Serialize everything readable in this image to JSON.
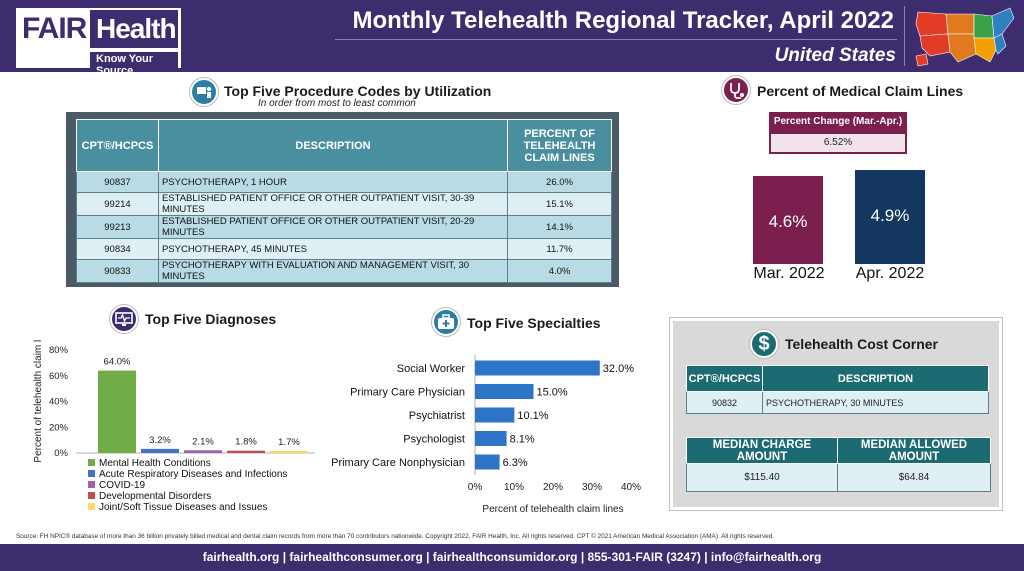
{
  "header": {
    "logo_fair": "FAIR",
    "logo_health": "Health",
    "logo_tagline": "Know Your Source",
    "title": "Monthly Telehealth Regional Tracker, April 2022",
    "region": "United States",
    "brand_color": "#3d2d6f"
  },
  "procedures": {
    "title": "Top Five Procedure Codes by Utilization",
    "subtitle": "In order from most to least common",
    "icon": "doctor-computer-icon",
    "columns": [
      "CPT®/HCPCS",
      "DESCRIPTION",
      "PERCENT OF TELEHEALTH CLAIM LINES"
    ],
    "rows": [
      {
        "code": "90837",
        "description": "PSYCHOTHERAPY, 1 HOUR",
        "percent": "26.0%"
      },
      {
        "code": "99214",
        "description": "ESTABLISHED PATIENT OFFICE OR OTHER OUTPATIENT VISIT, 30-39 MINUTES",
        "percent": "15.1%"
      },
      {
        "code": "99213",
        "description": "ESTABLISHED PATIENT OFFICE OR OTHER OUTPATIENT VISIT, 20-29 MINUTES",
        "percent": "14.1%"
      },
      {
        "code": "90834",
        "description": "PSYCHOTHERAPY, 45 MINUTES",
        "percent": "11.7%"
      },
      {
        "code": "90833",
        "description": "PSYCHOTHERAPY WITH EVALUATION AND MANAGEMENT VISIT, 30 MINUTES",
        "percent": "4.0%"
      }
    ]
  },
  "claim_lines": {
    "title": "Percent of Medical Claim Lines",
    "icon": "stethoscope-icon",
    "change_label": "Percent Change (Mar.-Apr.)",
    "change_value": "6.52%"
  },
  "cost_corner": {
    "title": "Telehealth Cost Corner",
    "icon": "dollar-icon",
    "code_header": "CPT®/HCPCS",
    "desc_header": "DESCRIPTION",
    "code": "90832",
    "description": "PSYCHOTHERAPY, 30 MINUTES",
    "charge_header": "MEDIAN CHARGE AMOUNT",
    "allowed_header": "MEDIAN ALLOWED AMOUNT",
    "charge_value": "$115.40",
    "allowed_value": "$64.84"
  },
  "diagnoses": {
    "title": "Top Five Diagnoses",
    "icon": "monitor-heart-icon"
  },
  "specialties": {
    "title": "Top Five Specialties",
    "icon": "medical-kit-icon"
  },
  "source": "Source: FH NPIC® database of more than 36 billion privately billed medical and dental claim records from more than 70 contributors nationwide. Copyright 2022, FAIR Health, Inc. All rights reserved. CPT © 2021 American Medical Association (AMA). All rights reserved.",
  "footer": "fairhealth.org  |  fairhealthconsumer.org  |  fairhealthconsumidor.org  |  855-301-FAIR (3247)  |  info@fairhealth.org",
  "chart_data": [
    {
      "type": "bar",
      "title": "Percent of Medical Claim Lines",
      "categories": [
        "Mar. 2022",
        "Apr. 2022"
      ],
      "values": [
        4.6,
        4.9
      ],
      "value_labels": [
        "4.6%",
        "4.9%"
      ],
      "colors": [
        "#7b1f4e",
        "#13375e"
      ]
    },
    {
      "type": "bar",
      "title": "Top Five Diagnoses",
      "ylabel": "Percent of telehealth claim lines",
      "ylim": [
        0,
        80
      ],
      "yticks": [
        "0%",
        "20%",
        "40%",
        "60%",
        "80%"
      ],
      "categories": [
        "Mental Health Conditions",
        "Acute Respiratory Diseases and Infections",
        "COVID-19",
        "Developmental Disorders",
        "Joint/Soft Tissue Diseases and Issues"
      ],
      "values": [
        64.0,
        3.2,
        2.1,
        1.8,
        1.7
      ],
      "value_labels": [
        "64.0%",
        "3.2%",
        "2.1%",
        "1.8%",
        "1.7%"
      ],
      "colors": [
        "#70ad47",
        "#4472c4",
        "#a05fb4",
        "#c0504d",
        "#ffd966"
      ],
      "legend": "bottom"
    },
    {
      "type": "bar",
      "orientation": "horizontal",
      "title": "Top Five Specialties",
      "xlabel": "Percent of telehealth claim lines",
      "xlim": [
        0,
        40
      ],
      "xticks": [
        "0%",
        "10%",
        "20%",
        "30%",
        "40%"
      ],
      "categories": [
        "Social Worker",
        "Primary Care Physician",
        "Psychiatrist",
        "Psychologist",
        "Primary Care Nonphysician"
      ],
      "values": [
        32.0,
        15.0,
        10.1,
        8.1,
        6.3
      ],
      "value_labels": [
        "32.0%",
        "15.0%",
        "10.1%",
        "8.1%",
        "6.3%"
      ],
      "color": "#2e75c8"
    }
  ]
}
